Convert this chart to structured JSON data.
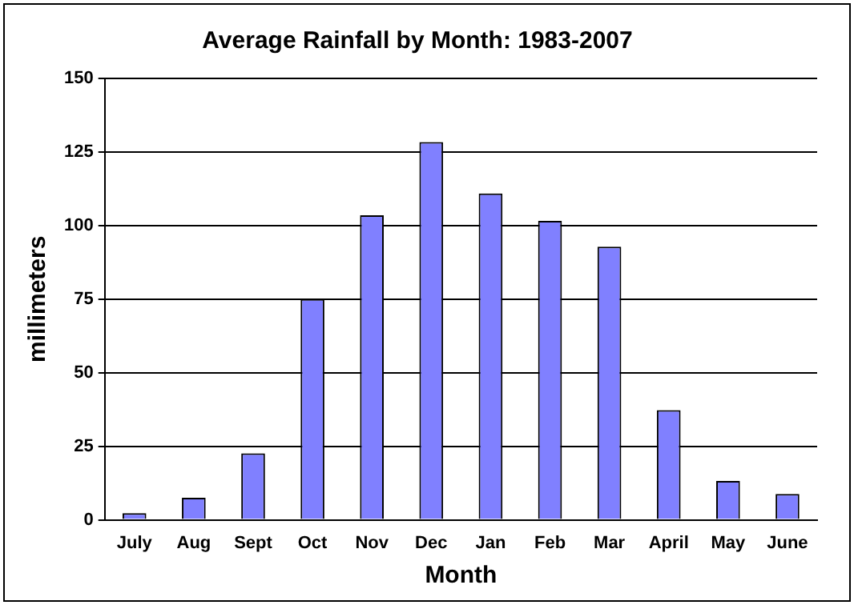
{
  "chart_data": {
    "type": "bar",
    "title": "Average Rainfall by Month: 1983-2007",
    "xlabel": "Month",
    "ylabel": "millimeters",
    "categories": [
      "July",
      "Aug",
      "Sept",
      "Oct",
      "Nov",
      "Dec",
      "Jan",
      "Feb",
      "Mar",
      "April",
      "May",
      "June"
    ],
    "values": [
      2.3,
      7.5,
      22.6,
      75,
      103.5,
      128.4,
      110.9,
      101.6,
      92.8,
      37.3,
      13.2,
      8.8
    ],
    "color": "#8080ff",
    "ylim": [
      0,
      150
    ],
    "yticks": [
      0,
      25,
      50,
      75,
      100,
      125,
      150
    ],
    "grid": "y",
    "legend": false
  }
}
